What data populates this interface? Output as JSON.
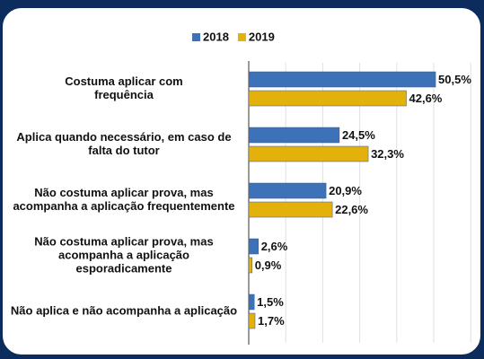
{
  "chart_data": {
    "type": "barh",
    "categories": [
      "Costuma aplicar com frequência",
      "Aplica quando necessário, em caso de falta do tutor",
      "Não costuma aplicar prova, mas acompanha a aplicação frequentemente",
      "Não costuma aplicar prova, mas acompanha a aplicação esporadicamente",
      "Não aplica e não acompanha a aplicação"
    ],
    "series": [
      {
        "name": "2018",
        "color": "#3d72b8",
        "values": [
          50.5,
          24.5,
          20.9,
          2.6,
          1.5
        ],
        "value_labels": [
          "50,5%",
          "24,5%",
          "20,9%",
          "2,6%",
          "1,5%"
        ]
      },
      {
        "name": "2019",
        "color": "#e3b10c",
        "values": [
          42.6,
          32.3,
          22.6,
          0.9,
          1.7
        ],
        "value_labels": [
          "42,6%",
          "32,3%",
          "22,6%",
          "0,9%",
          "1,7%"
        ]
      }
    ],
    "xlim": [
      0,
      60
    ],
    "xticks": [
      0,
      10,
      20,
      30,
      40,
      50,
      60
    ],
    "grid": true,
    "legend": "top"
  }
}
